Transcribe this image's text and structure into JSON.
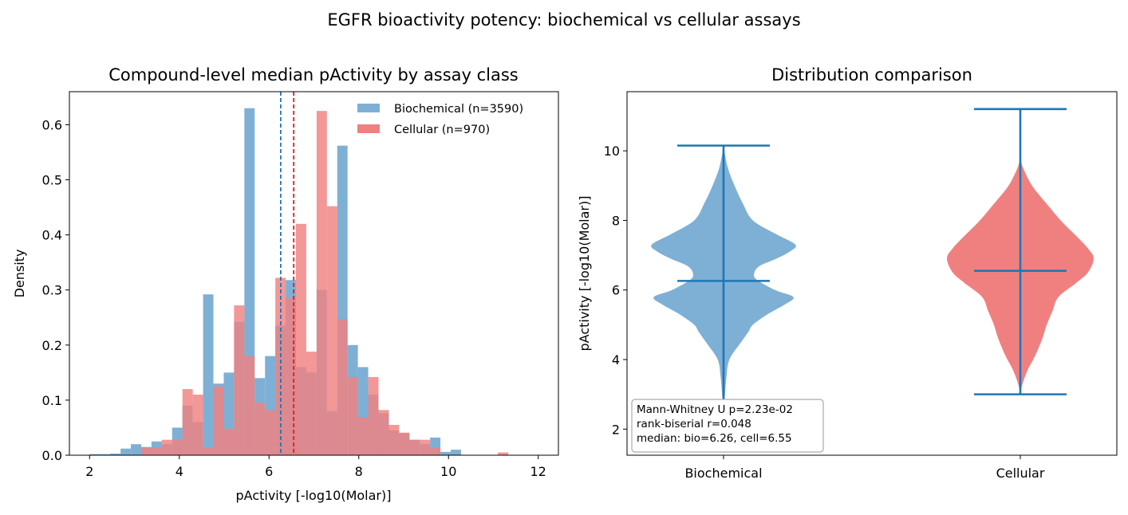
{
  "figure": {
    "suptitle": "EGFR bioactivity potency: biochemical vs cellular assays"
  },
  "colors": {
    "biochemical": "#1f77b4",
    "cellular": "#e41a1c",
    "biochemical_fill": "#7eb0d5",
    "cellular_fill": "#f08080"
  },
  "chart_data": [
    {
      "type": "histogram",
      "title": "Compound-level median pActivity by assay class",
      "xlabel": "pActivity  [-log10(Molar)]",
      "ylabel": "Density",
      "xlim": [
        1.55,
        12.45
      ],
      "ylim": [
        0,
        0.66
      ],
      "xticks": [
        2,
        4,
        6,
        8,
        10,
        12
      ],
      "yticks": [
        0.0,
        0.1,
        0.2,
        0.3,
        0.4,
        0.5,
        0.6
      ],
      "bin_width": 0.23,
      "grid": false,
      "legend_position": "top-right",
      "series": [
        {
          "name": "Biochemical (n=3590)",
          "bin_starts": [
            2.0,
            2.23,
            2.46,
            2.69,
            2.92,
            3.15,
            3.38,
            3.61,
            3.84,
            4.07,
            4.3,
            4.53,
            4.76,
            4.99,
            5.22,
            5.45,
            5.68,
            5.91,
            6.14,
            6.37,
            6.6,
            6.83,
            7.06,
            7.29,
            7.52,
            7.75,
            7.98,
            8.21,
            8.44,
            8.67,
            8.9,
            9.13,
            9.36,
            9.59,
            9.82,
            10.05
          ],
          "values": [
            0.002,
            0.002,
            0.003,
            0.012,
            0.02,
            0.015,
            0.025,
            0.02,
            0.05,
            0.09,
            0.06,
            0.292,
            0.13,
            0.15,
            0.242,
            0.63,
            0.14,
            0.18,
            0.235,
            0.318,
            0.16,
            0.15,
            0.3,
            0.08,
            0.562,
            0.2,
            0.16,
            0.11,
            0.076,
            0.045,
            0.04,
            0.028,
            0.02,
            0.032,
            0.006,
            0.01
          ],
          "median": 6.26
        },
        {
          "name": "Cellular (n=970)",
          "bin_starts": [
            3.15,
            3.38,
            3.61,
            3.84,
            4.07,
            4.3,
            4.53,
            4.76,
            4.99,
            5.22,
            5.45,
            5.68,
            5.91,
            6.14,
            6.37,
            6.6,
            6.83,
            7.06,
            7.29,
            7.52,
            7.75,
            7.98,
            8.21,
            8.44,
            8.67,
            8.9,
            9.13,
            9.36,
            9.59,
            11.1
          ],
          "values": [
            0.014,
            0.014,
            0.028,
            0.028,
            0.12,
            0.11,
            0.014,
            0.125,
            0.048,
            0.272,
            0.18,
            0.095,
            0.082,
            0.322,
            0.285,
            0.42,
            0.188,
            0.625,
            0.452,
            0.247,
            0.142,
            0.069,
            0.142,
            0.082,
            0.055,
            0.041,
            0.028,
            0.028,
            0.014,
            0.005
          ],
          "median": 6.55
        }
      ]
    },
    {
      "type": "violin",
      "title": "Distribution comparison",
      "ylabel": "pActivity  [-log10(Molar)]",
      "categories": [
        "Biochemical",
        "Cellular"
      ],
      "ylim": [
        1.25,
        11.7
      ],
      "yticks": [
        2,
        4,
        6,
        8,
        10
      ],
      "grid": false,
      "series": [
        {
          "name": "Biochemical",
          "min": 2.5,
          "max": 10.15,
          "median": 6.26,
          "density_profile": [
            [
              2.5,
              0.0
            ],
            [
              3.0,
              0.02
            ],
            [
              3.5,
              0.04
            ],
            [
              4.0,
              0.08
            ],
            [
              4.5,
              0.24
            ],
            [
              4.8,
              0.34
            ],
            [
              5.0,
              0.4
            ],
            [
              5.3,
              0.6
            ],
            [
              5.6,
              0.85
            ],
            [
              5.8,
              0.95
            ],
            [
              6.0,
              0.7
            ],
            [
              6.3,
              0.45
            ],
            [
              6.5,
              0.42
            ],
            [
              6.7,
              0.5
            ],
            [
              6.9,
              0.72
            ],
            [
              7.1,
              0.9
            ],
            [
              7.3,
              0.98
            ],
            [
              7.6,
              0.72
            ],
            [
              8.0,
              0.4
            ],
            [
              8.5,
              0.26
            ],
            [
              9.0,
              0.15
            ],
            [
              9.5,
              0.06
            ],
            [
              10.0,
              0.01
            ],
            [
              10.15,
              0.0
            ]
          ]
        },
        {
          "name": "Cellular",
          "min": 3.0,
          "max": 11.2,
          "median": 6.55,
          "density_profile": [
            [
              3.0,
              0.0
            ],
            [
              3.3,
              0.03
            ],
            [
              3.7,
              0.1
            ],
            [
              4.1,
              0.2
            ],
            [
              4.6,
              0.3
            ],
            [
              5.0,
              0.36
            ],
            [
              5.4,
              0.44
            ],
            [
              5.8,
              0.52
            ],
            [
              6.2,
              0.76
            ],
            [
              6.5,
              0.92
            ],
            [
              6.9,
              1.0
            ],
            [
              7.2,
              0.92
            ],
            [
              7.6,
              0.74
            ],
            [
              8.0,
              0.55
            ],
            [
              8.5,
              0.35
            ],
            [
              9.0,
              0.16
            ],
            [
              9.5,
              0.04
            ],
            [
              9.8,
              0.0
            ]
          ]
        }
      ],
      "annotation_lines": [
        "Mann-Whitney U p=2.23e-02",
        "rank-biserial r=0.048",
        "median: bio=6.26, cell=6.55"
      ]
    }
  ]
}
